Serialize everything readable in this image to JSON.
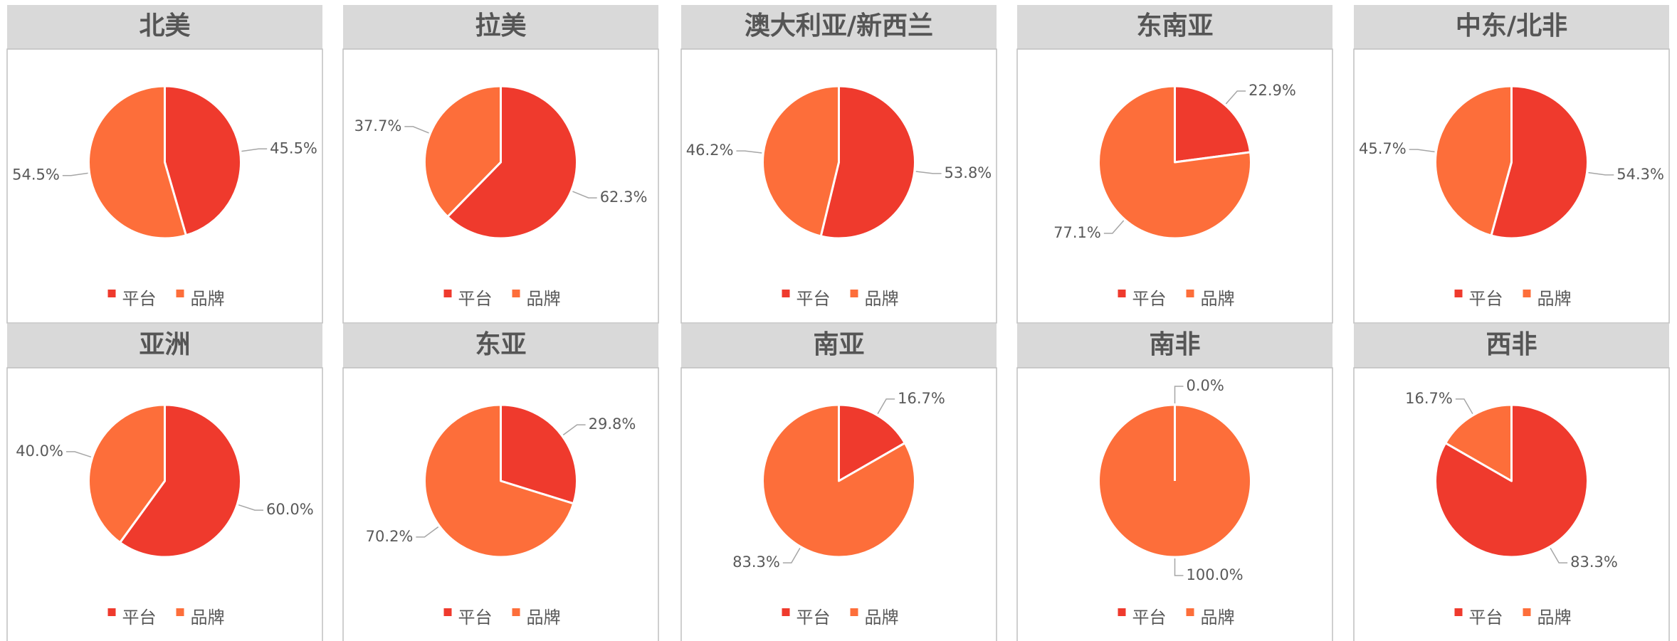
{
  "chart_data": [
    {
      "type": "pie",
      "title": "北美",
      "categories": [
        "平台",
        "品牌"
      ],
      "values": [
        45.5,
        54.5
      ],
      "value_labels": [
        "45.5%",
        "54.5%"
      ],
      "colors": [
        "#ef3a2d",
        "#fd6e3a"
      ]
    },
    {
      "type": "pie",
      "title": "拉美",
      "categories": [
        "平台",
        "品牌"
      ],
      "values": [
        62.3,
        37.7
      ],
      "value_labels": [
        "62.3%",
        "37.7%"
      ],
      "colors": [
        "#ef3a2d",
        "#fd6e3a"
      ]
    },
    {
      "type": "pie",
      "title": "澳大利亚/新西兰",
      "categories": [
        "平台",
        "品牌"
      ],
      "values": [
        53.8,
        46.2
      ],
      "value_labels": [
        "53.8%",
        "46.2%"
      ],
      "colors": [
        "#ef3a2d",
        "#fd6e3a"
      ]
    },
    {
      "type": "pie",
      "title": "东南亚",
      "categories": [
        "平台",
        "品牌"
      ],
      "values": [
        22.9,
        77.1
      ],
      "value_labels": [
        "22.9%",
        "77.1%"
      ],
      "colors": [
        "#ef3a2d",
        "#fd6e3a"
      ]
    },
    {
      "type": "pie",
      "title": "中东/北非",
      "categories": [
        "平台",
        "品牌"
      ],
      "values": [
        54.3,
        45.7
      ],
      "value_labels": [
        "54.3%",
        "45.7%"
      ],
      "colors": [
        "#ef3a2d",
        "#fd6e3a"
      ]
    },
    {
      "type": "pie",
      "title": "亚洲",
      "categories": [
        "平台",
        "品牌"
      ],
      "values": [
        60.0,
        40.0
      ],
      "value_labels": [
        "60.0%",
        "40.0%"
      ],
      "colors": [
        "#ef3a2d",
        "#fd6e3a"
      ]
    },
    {
      "type": "pie",
      "title": "东亚",
      "categories": [
        "平台",
        "品牌"
      ],
      "values": [
        29.8,
        70.2
      ],
      "value_labels": [
        "29.8%",
        "70.2%"
      ],
      "colors": [
        "#ef3a2d",
        "#fd6e3a"
      ]
    },
    {
      "type": "pie",
      "title": "南亚",
      "categories": [
        "平台",
        "品牌"
      ],
      "values": [
        16.7,
        83.3
      ],
      "value_labels": [
        "16.7%",
        "83.3%"
      ],
      "colors": [
        "#ef3a2d",
        "#fd6e3a"
      ]
    },
    {
      "type": "pie",
      "title": "南非",
      "categories": [
        "平台",
        "品牌"
      ],
      "values": [
        0.0,
        100.0
      ],
      "value_labels": [
        "0.0%",
        "100.0%"
      ],
      "colors": [
        "#ef3a2d",
        "#fd6e3a"
      ]
    },
    {
      "type": "pie",
      "title": "西非",
      "categories": [
        "平台",
        "品牌"
      ],
      "values": [
        83.3,
        16.7
      ],
      "value_labels": [
        "83.3%",
        "16.7%"
      ],
      "colors": [
        "#ef3a2d",
        "#fd6e3a"
      ]
    }
  ]
}
